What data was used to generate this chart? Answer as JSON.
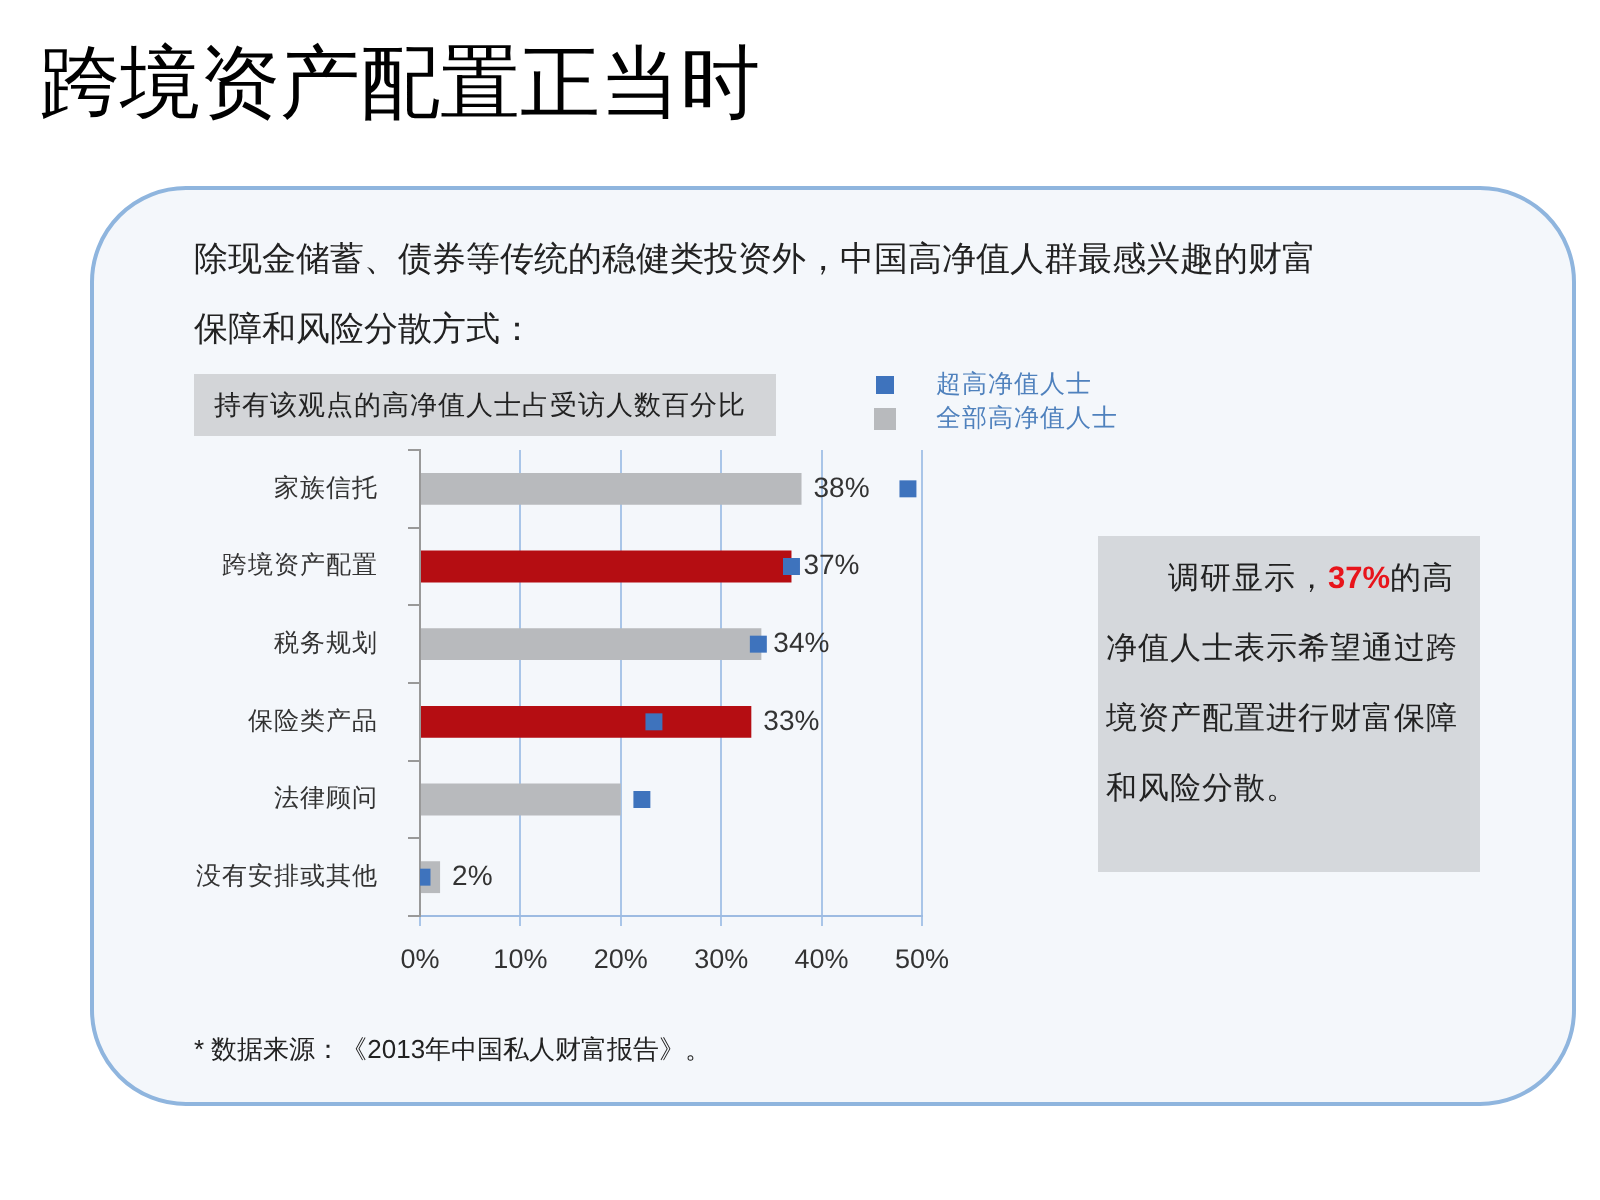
{
  "chart_data": {
    "type": "bar",
    "orientation": "horizontal",
    "title": "跨境资产配置正当时",
    "subtitle": "除现金储蓄、债券等传统的稳健类投资外，中国高净值人群最感兴趣的财富保障和风险分散方式：",
    "categories": [
      "家族信托",
      "跨境资产配置",
      "税务规划",
      "保险类产品",
      "法律顾问",
      "没有安排或其他"
    ],
    "series": [
      {
        "name": "超高净值人士",
        "type": "scatter",
        "marker": "square",
        "color": "#3e73bd",
        "values": [
          48.6,
          37,
          33.7,
          23.3,
          22.1,
          0.2
        ]
      },
      {
        "name": "全部高净值人士",
        "color": "#b8babd",
        "colors": [
          "#b8babd",
          "#b50d12",
          "#b8babd",
          "#b50d12",
          "#b8babd",
          "#b8babd"
        ],
        "values": [
          38,
          37,
          34,
          33,
          20,
          2
        ],
        "value_labels": [
          "38%",
          "37%",
          "34%",
          "33%",
          null,
          "2%"
        ]
      }
    ],
    "xlim": [
      0,
      50
    ],
    "xticks": [
      {
        "value": 0,
        "label": "0%"
      },
      {
        "value": 10,
        "label": "10%"
      },
      {
        "value": 20,
        "label": "20%"
      },
      {
        "value": 30,
        "label": "30%"
      },
      {
        "value": 40,
        "label": "40%"
      },
      {
        "value": 50,
        "label": "50%"
      }
    ],
    "grid": "x",
    "legend": "top right",
    "annotations": [
      "持有该观点的高净值人士占受访人数百分比",
      "调研显示，37%的高净值人士表示希望通过跨境资产配置进行财富保障和风险分散。",
      "* 数据来源：《2013年中国私人财富报告》。"
    ]
  }
}
